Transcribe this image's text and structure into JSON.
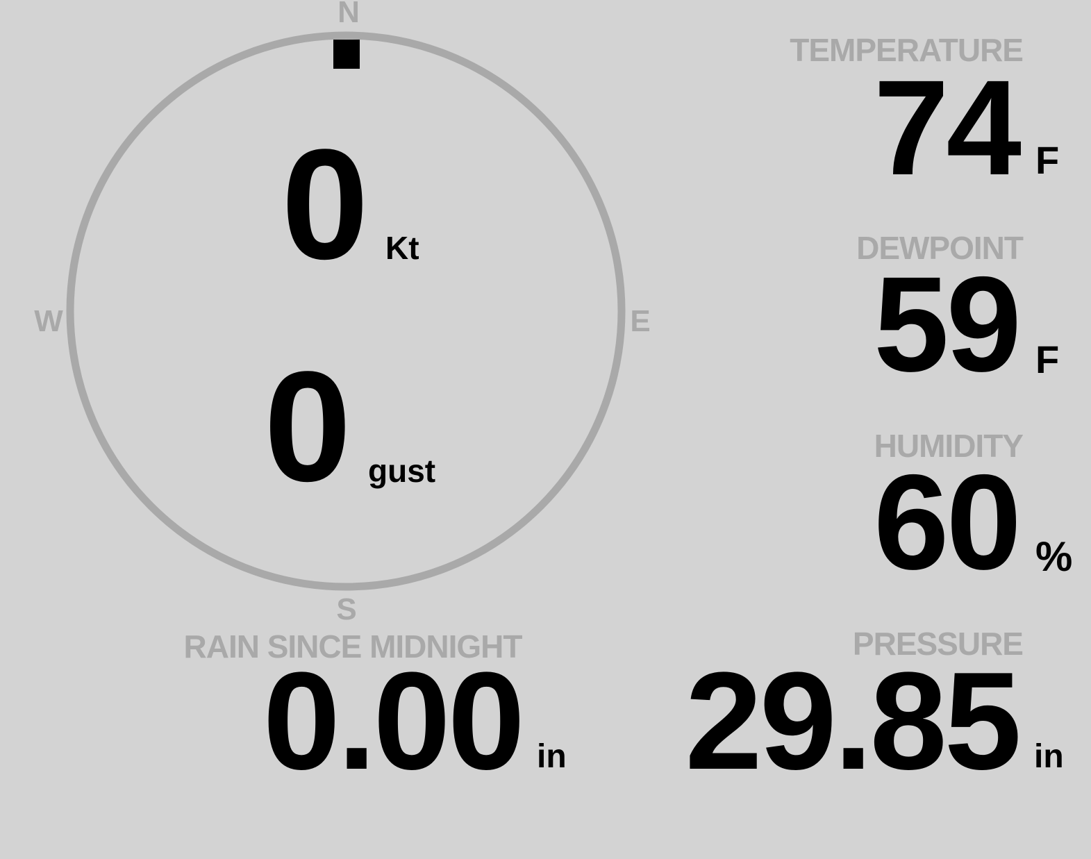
{
  "colors": {
    "background": "#d3d3d3",
    "label": "#a9a9a9",
    "value": "#000000",
    "compass_ring": "#a9a9a9",
    "wind_marker": "#000000"
  },
  "wind": {
    "compass": {
      "north": "N",
      "east": "E",
      "south": "S",
      "west": "W"
    },
    "direction_deg": 0,
    "speed": "0",
    "speed_unit": "Kt",
    "gust": "0",
    "gust_unit": "gust"
  },
  "temperature": {
    "label": "TEMPERATURE",
    "value": "74",
    "unit": "F"
  },
  "dewpoint": {
    "label": "DEWPOINT",
    "value": "59",
    "unit": "F"
  },
  "humidity": {
    "label": "HUMIDITY",
    "value": "60",
    "unit": "%"
  },
  "rain": {
    "label": "RAIN SINCE MIDNIGHT",
    "value": "0.00",
    "unit": "in"
  },
  "pressure": {
    "label": "PRESSURE",
    "value": "29.85",
    "unit": "in"
  }
}
